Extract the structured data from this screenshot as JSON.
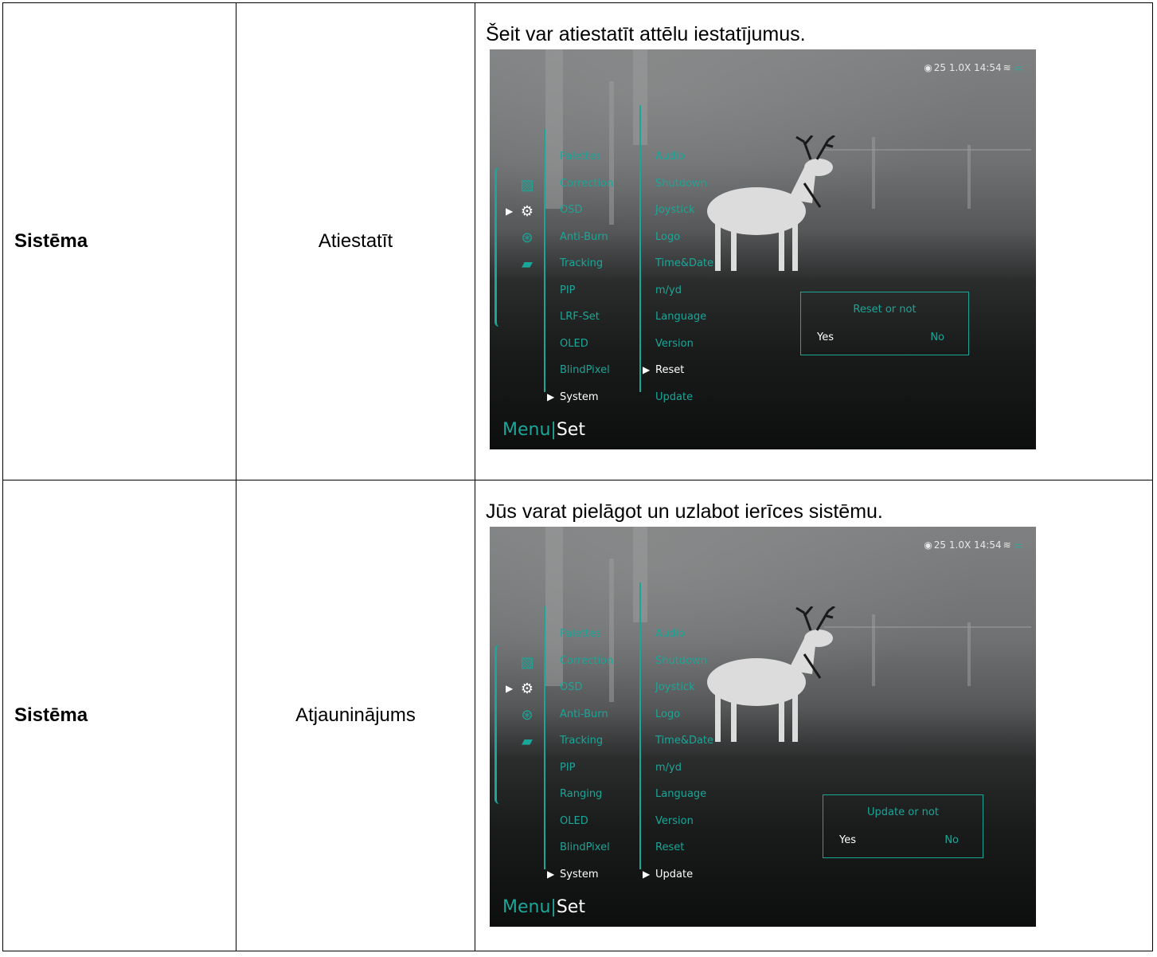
{
  "rows": [
    {
      "category": "Sistēma",
      "item": "Atiestatīt",
      "description": "Šeit var atiestatīt attēlu iestatījumus.",
      "screen": {
        "status": "25  1.0X  14:54",
        "col_a": [
          "Palettes",
          "Correction",
          "OSD",
          "Anti-Burn",
          "Tracking",
          "PIP",
          "LRF-Set",
          "OLED",
          "BlindPixel",
          "System"
        ],
        "col_b": [
          "Audio",
          "Shutdown",
          "Joystick",
          "Logo",
          "Time&Date",
          "m/yd",
          "Language",
          "Version",
          "Reset",
          "Update"
        ],
        "dialog_question": "Reset or not",
        "yes": "Yes",
        "no": "No",
        "menu": "Menu",
        "set": "Set"
      }
    },
    {
      "category": "Sistēma",
      "item": "Atjauninājums",
      "description": "Jūs varat pielāgot un uzlabot ierīces sistēmu.",
      "screen": {
        "status": "25  1.0X  14:54",
        "col_a": [
          "Palettes",
          "Correction",
          "OSD",
          "Anti-Burn",
          "Tracking",
          "PIP",
          "Ranging",
          "OLED",
          "BlindPixel",
          "System"
        ],
        "col_b": [
          "Audio",
          "Shutdown",
          "Joystick",
          "Logo",
          "Time&Date",
          "m/yd",
          "Language",
          "Version",
          "Reset",
          "Update"
        ],
        "dialog_question": "Update or not",
        "yes": "Yes",
        "no": "No",
        "menu": "Menu",
        "set": "Set"
      }
    }
  ],
  "colors": {
    "accent": "#1aa698",
    "selected": "#ffffff",
    "border": "#000000"
  },
  "icons": [
    "record-icon",
    "video-icon",
    "image-icon",
    "microphone-icon",
    "wifi-icon",
    "battery-icon",
    "gallery-icon",
    "gear-icon",
    "aperture-icon",
    "folder-icon",
    "play-arrow-icon"
  ],
  "selection": [
    {
      "col_b_selected_index": 8,
      "dialog": "reset"
    },
    {
      "col_b_selected_index": 9,
      "dialog": "update"
    }
  ]
}
